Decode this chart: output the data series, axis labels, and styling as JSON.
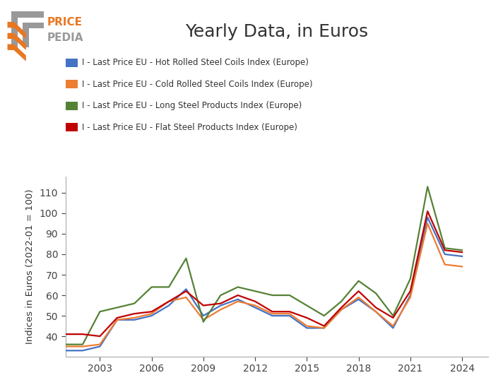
{
  "title": "Yearly Data, in Euros",
  "ylabel": "Indices in Euros (2022-01 = 100)",
  "colors": {
    "hot_rolled": "#4472C4",
    "cold_rolled": "#ED7D31",
    "long_steel": "#548235",
    "flat_steel": "#C00000"
  },
  "legend_labels": [
    "I - Last Price EU - Hot Rolled Steel Coils Index (Europe)",
    "I - Last Price EU - Cold Rolled Steel Coils Index (Europe)",
    "I - Last Price EU - Long Steel Products Index (Europe)",
    "I - Last Price EU - Flat Steel Products Index (Europe)"
  ],
  "years": [
    2001,
    2002,
    2003,
    2004,
    2005,
    2006,
    2007,
    2008,
    2009,
    2010,
    2011,
    2012,
    2013,
    2014,
    2015,
    2016,
    2017,
    2018,
    2019,
    2020,
    2021,
    2022,
    2023,
    2024
  ],
  "hot_rolled": [
    33,
    33,
    35,
    48,
    48,
    50,
    55,
    63,
    50,
    55,
    58,
    54,
    50,
    50,
    44,
    44,
    53,
    58,
    52,
    44,
    60,
    98,
    80,
    79
  ],
  "cold_rolled": [
    35,
    35,
    36,
    48,
    49,
    51,
    57,
    59,
    48,
    53,
    57,
    55,
    51,
    51,
    45,
    44,
    53,
    59,
    52,
    45,
    59,
    95,
    75,
    74
  ],
  "long_steel": [
    36,
    36,
    52,
    54,
    56,
    64,
    64,
    78,
    47,
    60,
    64,
    62,
    60,
    60,
    55,
    50,
    57,
    67,
    61,
    50,
    68,
    113,
    83,
    82
  ],
  "flat_steel": [
    41,
    41,
    40,
    49,
    51,
    52,
    57,
    62,
    55,
    56,
    60,
    57,
    52,
    52,
    49,
    45,
    54,
    62,
    54,
    49,
    62,
    101,
    82,
    81
  ],
  "yticks": [
    40,
    50,
    60,
    70,
    80,
    90,
    100,
    110
  ],
  "xticks": [
    2003,
    2006,
    2009,
    2012,
    2015,
    2018,
    2021,
    2024
  ],
  "xlim": [
    2001,
    2025.5
  ],
  "ylim": [
    30,
    118
  ],
  "background_color": "#ffffff",
  "spine_color": "#aaaaaa",
  "gray_color": "#999999",
  "orange_color": "#E87722",
  "title_fontsize": 18,
  "label_fontsize": 9.5,
  "legend_fontsize": 8.5,
  "tick_fontsize": 10,
  "linewidth": 1.6
}
